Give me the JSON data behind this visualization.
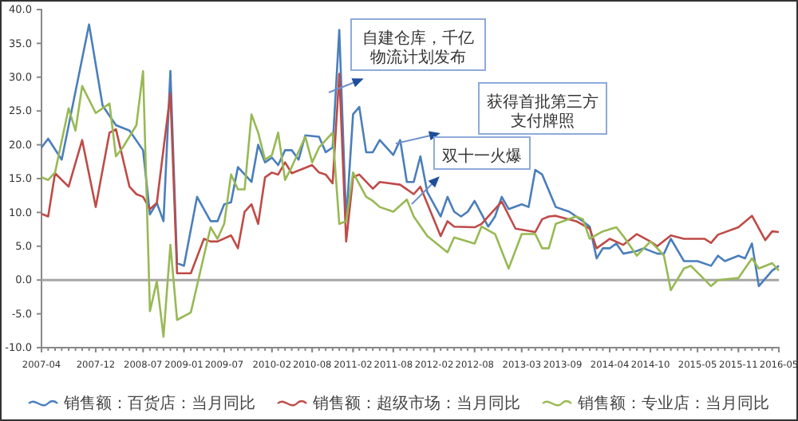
{
  "chart_data": {
    "type": "line",
    "xlim": [
      "2007-04",
      "2016-05"
    ],
    "xticks": [
      {
        "value": "2007-04",
        "label": "2007-04"
      },
      {
        "value": "2007-12",
        "label": "2007-12"
      },
      {
        "value": "2008-07",
        "label": "2008-07"
      },
      {
        "value": "2009-01",
        "label": "2009-01"
      },
      {
        "value": "2009-07",
        "label": "2009-07"
      },
      {
        "value": "2010-02",
        "label": "2010-02"
      },
      {
        "value": "2010-08",
        "label": "2010-08"
      },
      {
        "value": "2011-02",
        "label": "2011-02"
      },
      {
        "value": "2011-08",
        "label": "2011-08"
      },
      {
        "value": "2012-02",
        "label": "2012-02"
      },
      {
        "value": "2012-08",
        "label": "2012-08"
      },
      {
        "value": "2013-03",
        "label": "2013-03"
      },
      {
        "value": "2013-09",
        "label": "2013-09"
      },
      {
        "value": "2014-04",
        "label": "2014-04"
      },
      {
        "value": "2014-10",
        "label": "2014-10"
      },
      {
        "value": "2015-05",
        "label": "2015-05"
      },
      {
        "value": "2015-11",
        "label": "2015-11"
      },
      {
        "value": "2016-05",
        "label": "2016-05"
      }
    ],
    "ylim": [
      -10,
      40
    ],
    "yticks": [
      {
        "value": -10,
        "label": "-10.0"
      },
      {
        "value": -5,
        "label": "-5.0"
      },
      {
        "value": 0,
        "label": "0.0"
      },
      {
        "value": 5,
        "label": "5.0"
      },
      {
        "value": 10,
        "label": "10.0"
      },
      {
        "value": 15,
        "label": "15.0"
      },
      {
        "value": 20,
        "label": "20.0"
      },
      {
        "value": 25,
        "label": "25.0"
      },
      {
        "value": 30,
        "label": "30.0"
      },
      {
        "value": 35,
        "label": "35.0"
      },
      {
        "value": 40,
        "label": "40.0"
      }
    ],
    "grid": false,
    "legend": "bottom",
    "marker": "none",
    "line_style": "solid",
    "ref_lines": [
      {
        "axis": "y",
        "value": 0,
        "color": "#a6a6a6"
      }
    ],
    "annotations": [
      "自建仓库，千亿物流计划发布",
      "获得首批第三方支付牌照",
      "双十一火爆"
    ],
    "series": [
      {
        "name": "销售额：百货店：当月同比",
        "color": "#4a7ebb",
        "x": [
          "2007-04",
          "2007-05",
          "2007-07",
          "2007-11",
          "2008-01",
          "2008-03",
          "2008-05",
          "2008-07",
          "2008-08",
          "2008-09",
          "2008-10",
          "2008-11",
          "2008-12",
          "2009-01",
          "2009-03",
          "2009-05",
          "2009-06",
          "2009-07",
          "2009-08",
          "2009-09",
          "2009-11",
          "2009-12",
          "2010-01",
          "2010-02",
          "2010-03",
          "2010-04",
          "2010-05",
          "2010-06",
          "2010-07",
          "2010-09",
          "2010-10",
          "2010-11",
          "2010-12",
          "2011-01",
          "2011-02",
          "2011-03",
          "2011-04",
          "2011-05",
          "2011-06",
          "2011-08",
          "2011-09",
          "2011-10",
          "2011-11",
          "2011-12",
          "2012-01",
          "2012-03",
          "2012-04",
          "2012-05",
          "2012-06",
          "2012-07",
          "2012-08",
          "2012-10",
          "2012-11",
          "2012-12",
          "2013-01",
          "2013-03",
          "2013-04",
          "2013-05",
          "2013-06",
          "2013-08",
          "2013-10",
          "2013-12",
          "2014-01",
          "2014-02",
          "2014-03",
          "2014-04",
          "2014-05",
          "2014-06",
          "2014-08",
          "2014-09",
          "2014-11",
          "2014-12",
          "2015-01",
          "2015-03",
          "2015-04",
          "2015-05",
          "2015-07",
          "2015-08",
          "2015-09",
          "2015-11",
          "2015-12",
          "2016-01",
          "2016-02",
          "2016-04",
          "2016-05"
        ],
        "values": [
          19.6,
          20.9,
          17.8,
          37.8,
          25.8,
          22.9,
          22.1,
          19.2,
          9.7,
          11.4,
          8.7,
          30.9,
          2.5,
          2.1,
          12.3,
          8.7,
          8.7,
          11.2,
          11.5,
          16.7,
          14.5,
          20,
          17.4,
          18.1,
          17,
          19.2,
          19.2,
          17.8,
          21.4,
          21.2,
          18.9,
          19.6,
          37,
          8.7,
          24.5,
          25.6,
          18.9,
          18.9,
          20.7,
          18.5,
          20.7,
          14.5,
          14.5,
          18.3,
          13,
          9.4,
          12.3,
          10.1,
          9.4,
          10.1,
          11.7,
          7.9,
          9.4,
          12.3,
          10.5,
          11.2,
          10.8,
          16.3,
          15.6,
          10.8,
          10.1,
          8.7,
          7.9,
          3.2,
          4.7,
          4.7,
          5.4,
          3.9,
          4.3,
          4.7,
          3.9,
          3.9,
          6.1,
          2.8,
          2.8,
          2.8,
          2.1,
          3.6,
          2.8,
          3.6,
          3.2,
          5.4,
          -0.9,
          1.4,
          2.1
        ]
      },
      {
        "name": "销售额：超级市场：当月同比",
        "color": "#be4b48",
        "x": [
          "2007-04",
          "2007-05",
          "2007-06",
          "2007-08",
          "2007-10",
          "2007-12",
          "2008-02",
          "2008-03",
          "2008-05",
          "2008-06",
          "2008-07",
          "2008-08",
          "2008-09",
          "2008-11",
          "2008-12",
          "2009-02",
          "2009-04",
          "2009-05",
          "2009-06",
          "2009-08",
          "2009-09",
          "2009-10",
          "2009-11",
          "2009-12",
          "2010-01",
          "2010-02",
          "2010-03",
          "2010-04",
          "2010-05",
          "2010-08",
          "2010-09",
          "2010-10",
          "2010-11",
          "2010-12",
          "2011-01",
          "2011-02",
          "2011-03",
          "2011-05",
          "2011-06",
          "2011-09",
          "2011-11",
          "2011-12",
          "2012-03",
          "2012-04",
          "2012-05",
          "2012-08",
          "2012-09",
          "2012-12",
          "2013-02",
          "2013-05",
          "2013-06",
          "2013-07",
          "2013-08",
          "2013-11",
          "2014-01",
          "2014-02",
          "2014-04",
          "2014-06",
          "2014-08",
          "2014-10",
          "2014-11",
          "2015-01",
          "2015-03",
          "2015-06",
          "2015-07",
          "2015-08",
          "2015-11",
          "2016-01",
          "2016-03",
          "2016-04",
          "2016-05"
        ],
        "values": [
          9.8,
          9.4,
          15.8,
          13.8,
          20.7,
          10.8,
          21.8,
          22.3,
          13.8,
          12.7,
          12.3,
          10.5,
          11.4,
          27.6,
          1,
          1,
          6.1,
          5.7,
          5.7,
          6.6,
          4.7,
          10.1,
          11.2,
          8.3,
          15.2,
          15.9,
          15.6,
          17.4,
          15.8,
          17,
          15.9,
          15.6,
          14.3,
          30.5,
          5.7,
          15.2,
          15.6,
          13.5,
          14.5,
          14.1,
          12.7,
          13.8,
          6.5,
          8.7,
          7.9,
          7.8,
          8.3,
          11.6,
          7.6,
          7.1,
          9,
          9.4,
          9.5,
          8.7,
          7.6,
          4.7,
          6.1,
          5.2,
          6.8,
          5.7,
          5,
          6.6,
          6.1,
          6.1,
          5.5,
          6.7,
          7.8,
          9.5,
          5.9,
          7.2,
          7.1
        ]
      },
      {
        "name": "销售额：专业店：当月同比",
        "color": "#98b954",
        "x": [
          "2007-04",
          "2007-05",
          "2007-06",
          "2007-08",
          "2007-09",
          "2007-10",
          "2007-12",
          "2008-02",
          "2008-03",
          "2008-04",
          "2008-06",
          "2008-07",
          "2008-08",
          "2008-09",
          "2008-10",
          "2008-11",
          "2008-12",
          "2009-02",
          "2009-04",
          "2009-05",
          "2009-06",
          "2009-07",
          "2009-08",
          "2009-09",
          "2009-10",
          "2009-11",
          "2009-12",
          "2010-01",
          "2010-02",
          "2010-03",
          "2010-04",
          "2010-05",
          "2010-07",
          "2010-08",
          "2010-09",
          "2010-11",
          "2010-12",
          "2011-01",
          "2011-02",
          "2011-04",
          "2011-05",
          "2011-06",
          "2011-08",
          "2011-10",
          "2011-11",
          "2012-01",
          "2012-04",
          "2012-05",
          "2012-08",
          "2012-09",
          "2012-11",
          "2013-01",
          "2013-03",
          "2013-05",
          "2013-06",
          "2013-07",
          "2013-08",
          "2013-11",
          "2013-12",
          "2014-01",
          "2014-03",
          "2014-05",
          "2014-06",
          "2014-08",
          "2014-10",
          "2014-11",
          "2014-12",
          "2015-01",
          "2015-03",
          "2015-04",
          "2015-07",
          "2015-08",
          "2015-11",
          "2016-01",
          "2016-02",
          "2016-04",
          "2016-05"
        ],
        "values": [
          15.2,
          14.8,
          15.9,
          25.4,
          22.1,
          28.7,
          24.7,
          26.1,
          18.3,
          19.6,
          22.9,
          30.9,
          -4.6,
          -0.2,
          -8.4,
          5.2,
          -5.9,
          -4.8,
          3.6,
          7.8,
          6.1,
          8.3,
          15.6,
          13.4,
          13.4,
          24.5,
          21.8,
          17.8,
          18.5,
          21.8,
          14.8,
          16.7,
          21.2,
          17.4,
          19.6,
          21.8,
          8.3,
          8.7,
          15.9,
          12.3,
          11.7,
          10.8,
          10.1,
          11.9,
          9.4,
          6.5,
          4.1,
          6.3,
          5.4,
          7.9,
          6.8,
          1.7,
          6.8,
          6.8,
          4.7,
          4.7,
          8.3,
          9.4,
          9,
          6.1,
          7.2,
          7.8,
          6.5,
          3.6,
          5.7,
          4.7,
          3.6,
          -1.5,
          1.7,
          2.1,
          -0.9,
          0,
          0.3,
          3.2,
          1.7,
          2.5,
          1.4
        ]
      }
    ]
  }
}
